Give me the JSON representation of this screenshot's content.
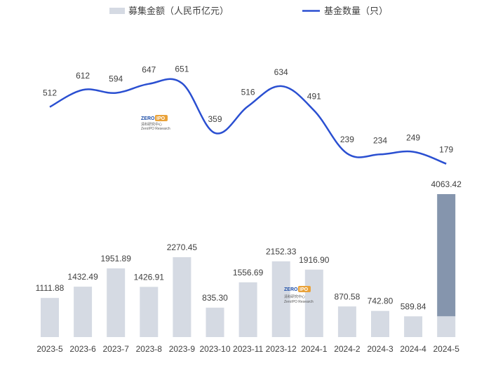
{
  "chart_data": {
    "type": "bar",
    "categories": [
      "2023-5",
      "2023-6",
      "2023-7",
      "2023-8",
      "2023-9",
      "2023-10",
      "2023-11",
      "2023-12",
      "2024-1",
      "2024-2",
      "2024-3",
      "2024-4",
      "2024-5"
    ],
    "series": [
      {
        "name": "募集金额（人民币亿元）",
        "type": "bar",
        "values": [
          1111.88,
          1432.49,
          1951.89,
          1426.91,
          2270.45,
          835.3,
          1556.69,
          2152.33,
          1916.9,
          870.58,
          742.8,
          589.84,
          4063.42
        ],
        "labels": [
          "1111.88",
          "1432.49",
          "1951.89",
          "1426.91",
          "2270.45",
          "835.30",
          "1556.69",
          "2152.33",
          "1916.90",
          "870.58",
          "742.80",
          "589.84",
          "4063.42"
        ]
      },
      {
        "name": "基金数量（只）",
        "type": "line",
        "values": [
          512,
          612,
          594,
          647,
          651,
          359,
          516,
          634,
          491,
          239,
          234,
          249,
          179
        ],
        "labels": [
          "512",
          "612",
          "594",
          "647",
          "651",
          "359",
          "516",
          "634",
          "491",
          "239",
          "234",
          "249",
          "179"
        ]
      }
    ],
    "highlighted_bar_split": {
      "category": "2024-5",
      "lower_value": 589.84
    },
    "legend_position": "top",
    "gridlines": false,
    "colors": {
      "bar": "#d5dae3",
      "bar_highlight": "#8595ad",
      "line": "#2a4fd1",
      "text": "#404040"
    }
  },
  "watermark": {
    "text_top_left": "ZERO",
    "text_top_right": "IPO",
    "text_cn": "清科研究中心",
    "text_en": "ZeroIPO Research"
  }
}
